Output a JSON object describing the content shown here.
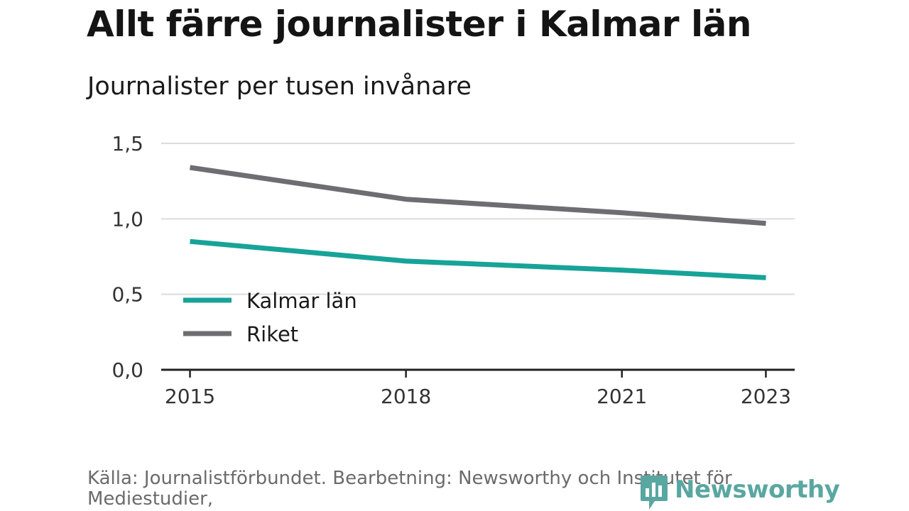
{
  "header": {
    "title": "Allt färre journalister i Kalmar län",
    "subtitle": "Journalister per tusen invånare"
  },
  "footer": {
    "source": "Källa: Journalistförbundet. Bearbetning: Newsworthy och Institutet för Mediestudier,",
    "brand": "Newsworthy"
  },
  "chart_data": {
    "type": "line",
    "title": "Allt färre journalister i Kalmar län",
    "subtitle": "Journalister per tusen invånare",
    "x": [
      2015,
      2018,
      2021,
      2023
    ],
    "x_tick_labels": [
      "2015",
      "2018",
      "2021",
      "2023"
    ],
    "y_tick_values": [
      0,
      0.5,
      1.0,
      1.5
    ],
    "y_tick_labels": [
      "0,0",
      "0,5",
      "1,0",
      "1,5"
    ],
    "xlim": [
      2014.6,
      2023.4
    ],
    "ylim": [
      0,
      1.5
    ],
    "grid": true,
    "legend_position": "lower-left",
    "series": [
      {
        "name": "Kalmar län",
        "color": "#17a398",
        "x": [
          2015,
          2018,
          2021,
          2023
        ],
        "values": [
          0.85,
          0.72,
          0.66,
          0.61
        ]
      },
      {
        "name": "Riket",
        "color": "#6e6d72",
        "x": [
          2015,
          2018,
          2021,
          2023
        ],
        "values": [
          1.34,
          1.13,
          1.04,
          0.97
        ]
      }
    ],
    "colors": {
      "grid": "#dcdcdc",
      "axis": "#222222",
      "tick_text": "#333333",
      "brand": "#5aa7a1"
    }
  }
}
